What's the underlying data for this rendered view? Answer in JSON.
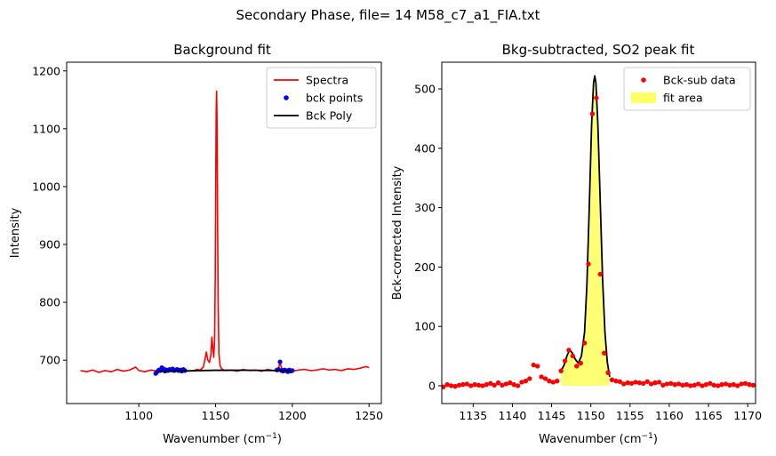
{
  "figure": {
    "suptitle": "Secondary Phase, file= 14 M58_c7_a1_FIA.txt"
  },
  "chart_data": [
    {
      "type": "line",
      "title": "Background fit",
      "xlabel_base": "Wavenumber (cm",
      "xlabel_sup": "−1",
      "xlabel_close": ")",
      "ylabel": "Intensity",
      "xlim": [
        1053,
        1258
      ],
      "ylim": [
        625,
        1215
      ],
      "xticks": [
        1100,
        1150,
        1200,
        1250
      ],
      "yticks": [
        700,
        800,
        900,
        1000,
        1100,
        1200
      ],
      "legend": {
        "position": "top-right",
        "entries": [
          {
            "label": "Spectra",
            "color": "#ff0000",
            "kind": "line"
          },
          {
            "label": "bck points",
            "color": "#0000ff",
            "kind": "marker"
          },
          {
            "label": "Bck Poly",
            "color": "#000000",
            "kind": "line"
          }
        ]
      },
      "series": [
        {
          "name": "Spectra",
          "color": "#ff0000",
          "points": [
            [
              1062,
              682
            ],
            [
              1066,
              680
            ],
            [
              1070,
              683
            ],
            [
              1074,
              679
            ],
            [
              1078,
              682
            ],
            [
              1082,
              680
            ],
            [
              1086,
              684
            ],
            [
              1090,
              681
            ],
            [
              1094,
              683
            ],
            [
              1098,
              688
            ],
            [
              1100,
              682
            ],
            [
              1104,
              680
            ],
            [
              1108,
              683
            ],
            [
              1112,
              681
            ],
            [
              1116,
              688
            ],
            [
              1120,
              683
            ],
            [
              1124,
              682
            ],
            [
              1128,
              684
            ],
            [
              1132,
              681
            ],
            [
              1136,
              682
            ],
            [
              1138,
              684
            ],
            [
              1140,
              683
            ],
            [
              1142,
              688
            ],
            [
              1143,
              700
            ],
            [
              1144,
              714
            ],
            [
              1145,
              700
            ],
            [
              1146,
              696
            ],
            [
              1147,
              710
            ],
            [
              1147.6,
              740
            ],
            [
              1148.2,
              722
            ],
            [
              1148.8,
              705
            ],
            [
              1149.4,
              735
            ],
            [
              1149.8,
              845
            ],
            [
              1150.1,
              1000
            ],
            [
              1150.4,
              1130
            ],
            [
              1150.7,
              1165
            ],
            [
              1151,
              1105
            ],
            [
              1151.3,
              940
            ],
            [
              1151.7,
              800
            ],
            [
              1152.2,
              710
            ],
            [
              1153,
              690
            ],
            [
              1154,
              685
            ],
            [
              1156,
              682
            ],
            [
              1160,
              683
            ],
            [
              1164,
              681
            ],
            [
              1168,
              684
            ],
            [
              1172,
              682
            ],
            [
              1176,
              683
            ],
            [
              1180,
              681
            ],
            [
              1184,
              684
            ],
            [
              1188,
              682
            ],
            [
              1191,
              686
            ],
            [
              1192,
              696
            ],
            [
              1193,
              686
            ],
            [
              1196,
              683
            ],
            [
              1200,
              681
            ],
            [
              1204,
              683
            ],
            [
              1208,
              684
            ],
            [
              1212,
              682
            ],
            [
              1216,
              683
            ],
            [
              1220,
              685
            ],
            [
              1224,
              683
            ],
            [
              1228,
              684
            ],
            [
              1232,
              682
            ],
            [
              1236,
              685
            ],
            [
              1240,
              684
            ],
            [
              1244,
              686
            ],
            [
              1248,
              689
            ],
            [
              1250,
              687
            ]
          ]
        },
        {
          "name": "bck points",
          "color": "#0000ff",
          "points": [
            [
              1111,
              677
            ],
            [
              1112,
              680
            ],
            [
              1113,
              683
            ],
            [
              1114,
              682
            ],
            [
              1115,
              687
            ],
            [
              1116,
              684
            ],
            [
              1117,
              681
            ],
            [
              1118,
              683
            ],
            [
              1119,
              682
            ],
            [
              1120,
              684
            ],
            [
              1121,
              683
            ],
            [
              1122,
              685
            ],
            [
              1123,
              682
            ],
            [
              1124,
              683
            ],
            [
              1125,
              684
            ],
            [
              1126,
              682
            ],
            [
              1127,
              683
            ],
            [
              1128,
              681
            ],
            [
              1129,
              684
            ],
            [
              1130,
              682
            ],
            [
              1190,
              683
            ],
            [
              1191,
              684
            ],
            [
              1192,
              697
            ],
            [
              1193,
              682
            ],
            [
              1194,
              681
            ],
            [
              1195,
              683
            ],
            [
              1196,
              682
            ],
            [
              1197,
              680
            ],
            [
              1198,
              683
            ],
            [
              1199,
              681
            ],
            [
              1200,
              682
            ]
          ]
        },
        {
          "name": "Bck Poly",
          "color": "#000000",
          "points": [
            [
              1111,
              680.5
            ],
            [
              1130,
              681.5
            ],
            [
              1150,
              682.5
            ],
            [
              1170,
              682.6
            ],
            [
              1190,
              682
            ],
            [
              1200,
              681.5
            ]
          ]
        }
      ]
    },
    {
      "type": "scatter",
      "title": "Bkg-subtracted, SO2 peak fit",
      "xlabel_base": "Wavenumber (cm",
      "xlabel_sup": "−1",
      "xlabel_close": ")",
      "ylabel": "Bck-corrected Intensity",
      "xlim": [
        1131,
        1171
      ],
      "ylim": [
        -30,
        545
      ],
      "xticks": [
        1135,
        1140,
        1145,
        1150,
        1155,
        1160,
        1165,
        1170
      ],
      "yticks": [
        0,
        100,
        200,
        300,
        400,
        500
      ],
      "legend": {
        "position": "top-right",
        "entries": [
          {
            "label": "Bck-sub data",
            "color": "#ff0000",
            "kind": "marker"
          },
          {
            "label": "fit area",
            "color": "#ffff66",
            "kind": "patch"
          }
        ]
      },
      "series": [
        {
          "name": "Bck-sub data",
          "color": "#ff0000",
          "points": [
            [
              1131.2,
              -2
            ],
            [
              1131.7,
              2
            ],
            [
              1132.2,
              0
            ],
            [
              1132.7,
              -1
            ],
            [
              1133.2,
              1
            ],
            [
              1133.7,
              2
            ],
            [
              1134.2,
              3
            ],
            [
              1134.7,
              0
            ],
            [
              1135.2,
              2
            ],
            [
              1135.7,
              1
            ],
            [
              1136.2,
              0
            ],
            [
              1136.7,
              2
            ],
            [
              1137.2,
              4
            ],
            [
              1137.7,
              1
            ],
            [
              1138.2,
              5
            ],
            [
              1138.7,
              1
            ],
            [
              1139.2,
              3
            ],
            [
              1139.7,
              5
            ],
            [
              1140.2,
              2
            ],
            [
              1140.7,
              0
            ],
            [
              1141.2,
              6
            ],
            [
              1141.7,
              8
            ],
            [
              1142.2,
              12
            ],
            [
              1142.7,
              35
            ],
            [
              1143.2,
              33
            ],
            [
              1143.7,
              15
            ],
            [
              1144.2,
              12
            ],
            [
              1144.7,
              8
            ],
            [
              1145.2,
              6
            ],
            [
              1145.7,
              8
            ],
            [
              1146.2,
              25
            ],
            [
              1146.7,
              42
            ],
            [
              1147.2,
              60
            ],
            [
              1147.7,
              50
            ],
            [
              1148.2,
              33
            ],
            [
              1148.7,
              38
            ],
            [
              1149.2,
              72
            ],
            [
              1149.7,
              205
            ],
            [
              1150.2,
              458
            ],
            [
              1150.7,
              485
            ],
            [
              1151.2,
              188
            ],
            [
              1151.7,
              55
            ],
            [
              1152.2,
              22
            ],
            [
              1152.7,
              10
            ],
            [
              1153.2,
              8
            ],
            [
              1153.7,
              7
            ],
            [
              1154.2,
              3
            ],
            [
              1154.7,
              5
            ],
            [
              1155.2,
              4
            ],
            [
              1155.7,
              6
            ],
            [
              1156.2,
              5
            ],
            [
              1156.7,
              4
            ],
            [
              1157.2,
              7
            ],
            [
              1157.7,
              3
            ],
            [
              1158.2,
              5
            ],
            [
              1158.7,
              6
            ],
            [
              1159.2,
              1
            ],
            [
              1159.7,
              3
            ],
            [
              1160.2,
              4
            ],
            [
              1160.7,
              2
            ],
            [
              1161.2,
              3
            ],
            [
              1161.7,
              1
            ],
            [
              1162.2,
              2
            ],
            [
              1162.7,
              0
            ],
            [
              1163.2,
              1
            ],
            [
              1163.7,
              3
            ],
            [
              1164.2,
              0
            ],
            [
              1164.7,
              2
            ],
            [
              1165.2,
              4
            ],
            [
              1165.7,
              1
            ],
            [
              1166.2,
              0
            ],
            [
              1166.7,
              2
            ],
            [
              1167.2,
              3
            ],
            [
              1167.7,
              1
            ],
            [
              1168.2,
              2
            ],
            [
              1168.7,
              0
            ],
            [
              1169.2,
              3
            ],
            [
              1169.7,
              4
            ],
            [
              1170.2,
              2
            ],
            [
              1170.7,
              1
            ]
          ]
        },
        {
          "name": "fit",
          "color": "#000000",
          "points": [
            [
              1146.2,
              25
            ],
            [
              1146.6,
              35
            ],
            [
              1147.0,
              52
            ],
            [
              1147.3,
              60
            ],
            [
              1147.6,
              56
            ],
            [
              1148.0,
              45
            ],
            [
              1148.4,
              38
            ],
            [
              1148.8,
              50
            ],
            [
              1149.2,
              90
            ],
            [
              1149.5,
              170
            ],
            [
              1149.8,
              300
            ],
            [
              1150.1,
              440
            ],
            [
              1150.35,
              510
            ],
            [
              1150.5,
              522
            ],
            [
              1150.65,
              510
            ],
            [
              1150.9,
              440
            ],
            [
              1151.2,
              310
            ],
            [
              1151.5,
              180
            ],
            [
              1151.8,
              90
            ],
            [
              1152.1,
              40
            ],
            [
              1152.4,
              15
            ]
          ]
        }
      ],
      "fill_area": {
        "color": "#ffff66",
        "x_range": [
          1146.2,
          1152.4
        ]
      }
    }
  ]
}
